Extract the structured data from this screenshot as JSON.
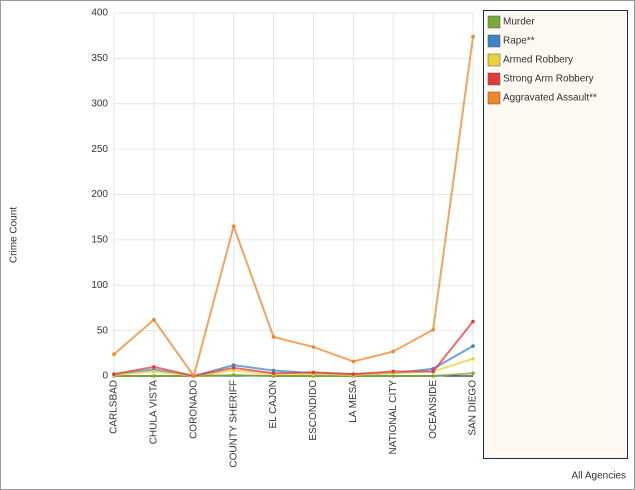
{
  "chart_data": {
    "type": "line",
    "y_label": "Crime Count",
    "footer": "All Agencies",
    "categories": [
      "CARLSBAD",
      "CHULA VISTA",
      "CORONADO",
      "COUNTY SHERIFF",
      "EL CAJON",
      "ESCONDIDO",
      "LA MESA",
      "NATIONAL CITY",
      "OCEANSIDE",
      "SAN DIEGO"
    ],
    "series": [
      {
        "name": "Murder",
        "color": "#7aa83a",
        "values": [
          0,
          0,
          0,
          1,
          0,
          0,
          0,
          0,
          0,
          3
        ]
      },
      {
        "name": "Rape**",
        "color": "#3d85c6",
        "values": [
          2,
          7,
          0,
          12,
          6,
          3,
          2,
          3,
          8,
          33
        ]
      },
      {
        "name": "Armed Robbery",
        "color": "#e8d33a",
        "values": [
          1,
          5,
          0,
          6,
          2,
          2,
          1,
          3,
          5,
          19
        ]
      },
      {
        "name": "Strong Arm Robbery",
        "color": "#e03c3c",
        "values": [
          2,
          10,
          0,
          9,
          3,
          4,
          2,
          5,
          5,
          60
        ]
      },
      {
        "name": "Aggravated Assault**",
        "color": "#f0862c",
        "values": [
          24,
          62,
          0,
          165,
          43,
          32,
          16,
          27,
          51,
          374
        ]
      }
    ],
    "ylim": [
      0,
      400
    ],
    "yticks": [
      0,
      50,
      100,
      150,
      200,
      250,
      300,
      350,
      400
    ],
    "grid": true
  }
}
